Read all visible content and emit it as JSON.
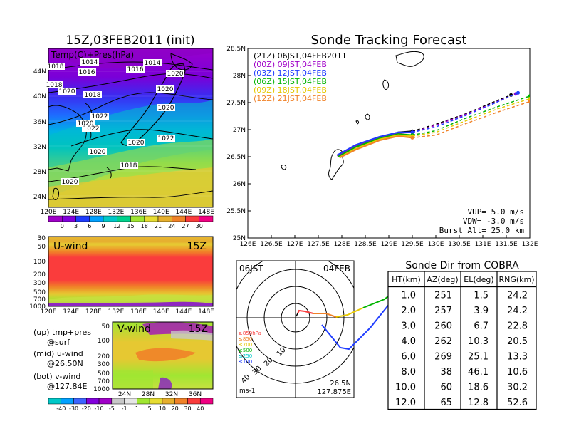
{
  "left_panel": {
    "title": "15Z,03FEB2011 (init)",
    "map_label": "Temp(C)+Pres(hPa)",
    "lat_labels": [
      "44N",
      "40N",
      "36N",
      "32N",
      "28N",
      "24N"
    ],
    "lon_labels": [
      "120E",
      "124E",
      "128E",
      "132E",
      "136E",
      "140E",
      "144E",
      "148E"
    ],
    "isobar_labels": [
      "1018",
      "1014",
      "1016",
      "1014",
      "1016",
      "1020",
      "1018",
      "1018",
      "1020",
      "1020",
      "1022",
      "1020",
      "1020",
      "1022",
      "1020",
      "1022",
      "1020",
      "1018",
      "1020"
    ],
    "temp_colorbar": {
      "labels": [
        "0",
        "3",
        "6",
        "9",
        "12",
        "15",
        "18",
        "21",
        "24",
        "27",
        "30"
      ],
      "colors": [
        "#a000c8",
        "#8200dc",
        "#1e3cff",
        "#00a0ff",
        "#00c8c8",
        "#00d28c",
        "#a0e632",
        "#e6dc32",
        "#e6af2d",
        "#f08228",
        "#fa3c3c",
        "#f00082"
      ]
    }
  },
  "uwind_panel": {
    "title": "U-wind",
    "time": "15Z",
    "y_labels": [
      "30",
      "50",
      "100",
      "200",
      "300",
      "500",
      "700",
      "1000"
    ],
    "x_labels": [
      "120E",
      "124E",
      "128E",
      "132E",
      "136E",
      "140E",
      "144E",
      "148E"
    ]
  },
  "vwind_panel": {
    "title": "V-wind",
    "time": "15Z",
    "y_labels": [
      "50",
      "100",
      "200",
      "300",
      "500",
      "700",
      "1000"
    ],
    "x_labels": [
      "24N",
      "28N",
      "32N",
      "36N"
    ]
  },
  "legend_notes": {
    "up": [
      "(up) tmp+pres",
      "@surf"
    ],
    "mid": [
      "(mid) u-wind",
      "@26.50N"
    ],
    "bot": [
      "(bot) v-wind",
      "@127.84E"
    ]
  },
  "wind_colorbar": {
    "labels": [
      "-40",
      "-30",
      "-20",
      "-10",
      "-5",
      "-1",
      "1",
      "5",
      "10",
      "20",
      "30",
      "40"
    ],
    "colors": [
      "#00c8c8",
      "#00a0ff",
      "#3c64ff",
      "#8200dc",
      "#a000c8",
      "#c8c8c8",
      "#e6e6e6",
      "#a0e632",
      "#e6dc32",
      "#e6af2d",
      "#f08228",
      "#fa3c3c",
      "#f00082"
    ]
  },
  "tracking": {
    "title": "Sonde Tracking Forecast",
    "lat_labels": [
      "28.5N",
      "28N",
      "27.5N",
      "27N",
      "26.5N",
      "26N",
      "25.5N",
      "25N"
    ],
    "lon_labels": [
      "126E",
      "126.5E",
      "127E",
      "127.5E",
      "128E",
      "128.5E",
      "129E",
      "129.5E",
      "130E",
      "130.5E",
      "131E",
      "131.5E",
      "132E"
    ],
    "legend": [
      {
        "label": "(21Z)  06JST,04FEB2011",
        "color": "#000000"
      },
      {
        "label": "(00Z)  09JST,04FEB",
        "color": "#a000c8"
      },
      {
        "label": "(03Z)  12JST,04FEB",
        "color": "#1e3cff"
      },
      {
        "label": "(06Z)  15JST,04FEB",
        "color": "#00b400"
      },
      {
        "label": "(09Z)  18JST,04FEB",
        "color": "#e6c800"
      },
      {
        "label": "(12Z)  21JST,04FEB",
        "color": "#f08228"
      }
    ],
    "params": [
      "VUP=  5.0  m/s",
      "VDW=  -3.0  m/s",
      "Burst Alt=  25.0  km"
    ]
  },
  "polar": {
    "time_label": "06JST",
    "date_label": "04FEB",
    "ring_labels": [
      "10",
      "20",
      "30",
      "40"
    ],
    "pressure_legend": [
      {
        "label": "≥850hPa",
        "color": "#fa3c3c"
      },
      {
        "label": "≤850",
        "color": "#f08228"
      },
      {
        "label": "≤700",
        "color": "#e6c800"
      },
      {
        "label": "≤500",
        "color": "#00b400"
      },
      {
        "label": "≤250",
        "color": "#00c8c8"
      },
      {
        "label": "≤100",
        "color": "#1e3cff"
      }
    ],
    "unit": "ms-1",
    "location": [
      "26.5N",
      "127.875E"
    ]
  },
  "sonde_table": {
    "title": "Sonde Dir from COBRA",
    "headers": [
      "HT(km)",
      "AZ(deg)",
      "EL(deg)",
      "RNG(km)"
    ],
    "rows": [
      [
        "1.0",
        "251",
        "1.5",
        "24.2"
      ],
      [
        "2.0",
        "257",
        "3.9",
        "24.2"
      ],
      [
        "3.0",
        "260",
        "6.7",
        "22.8"
      ],
      [
        "4.0",
        "262",
        "10.3",
        "20.5"
      ],
      [
        "6.0",
        "269",
        "25.1",
        "13.3"
      ],
      [
        "8.0",
        "38",
        "46.1",
        "10.6"
      ],
      [
        "10.0",
        "60",
        "18.6",
        "30.2"
      ],
      [
        "12.0",
        "65",
        "12.8",
        "52.6"
      ]
    ]
  },
  "chart_data": [
    {
      "type": "line",
      "title": "Sonde Tracking Forecast",
      "xlim": [
        126,
        132
      ],
      "ylim": [
        25,
        28.5
      ],
      "series": [
        {
          "name": "(21Z)  06JST,04FEB2011",
          "x": [
            127.9,
            128.3,
            128.8,
            129.2,
            129.5,
            130.0,
            130.6,
            131.2,
            131.6
          ],
          "y": [
            26.52,
            26.7,
            26.85,
            26.95,
            26.97,
            27.1,
            27.28,
            27.5,
            27.64
          ]
        },
        {
          "name": "(00Z)  09JST,04FEB",
          "x": [
            127.9,
            128.3,
            128.8,
            129.2,
            129.5,
            130.0,
            130.6,
            131.2,
            131.7
          ],
          "y": [
            26.52,
            26.7,
            26.85,
            26.94,
            26.95,
            27.08,
            27.27,
            27.48,
            27.66
          ]
        },
        {
          "name": "(03Z)  12JST,04FEB",
          "x": [
            127.9,
            128.3,
            128.8,
            129.2,
            129.5,
            130.0,
            130.6,
            131.2,
            131.75
          ],
          "y": [
            26.53,
            26.72,
            26.87,
            26.95,
            26.95,
            27.05,
            27.25,
            27.47,
            27.68
          ]
        },
        {
          "name": "(06Z)  15JST,04FEB",
          "x": [
            127.92,
            128.3,
            128.8,
            129.2,
            129.5,
            130.0,
            130.6,
            131.3,
            132.0
          ],
          "y": [
            26.5,
            26.68,
            26.84,
            26.92,
            26.9,
            26.98,
            27.2,
            27.42,
            27.62
          ]
        },
        {
          "name": "(09Z)  18JST,04FEB",
          "x": [
            127.95,
            128.3,
            128.8,
            129.2,
            129.5,
            130.0,
            130.6,
            131.3,
            132.0
          ],
          "y": [
            26.49,
            26.65,
            26.82,
            26.9,
            26.88,
            26.95,
            27.15,
            27.38,
            27.57
          ]
        },
        {
          "name": "(12Z)  21JST,04FEB",
          "x": [
            127.95,
            128.3,
            128.8,
            129.2,
            129.5,
            130.0,
            130.6,
            131.3,
            132.0
          ],
          "y": [
            26.48,
            26.63,
            26.8,
            26.88,
            26.85,
            26.9,
            27.1,
            27.32,
            27.52
          ]
        }
      ]
    },
    {
      "type": "table",
      "title": "Sonde Dir from COBRA",
      "columns": [
        "HT(km)",
        "AZ(deg)",
        "EL(deg)",
        "RNG(km)"
      ],
      "rows": [
        [
          1.0,
          251,
          1.5,
          24.2
        ],
        [
          2.0,
          257,
          3.9,
          24.2
        ],
        [
          3.0,
          260,
          6.7,
          22.8
        ],
        [
          4.0,
          262,
          10.3,
          20.5
        ],
        [
          6.0,
          269,
          25.1,
          13.3
        ],
        [
          8.0,
          38,
          46.1,
          10.6
        ],
        [
          10.0,
          60,
          18.6,
          30.2
        ],
        [
          12.0,
          65,
          12.8,
          52.6
        ]
      ]
    }
  ]
}
